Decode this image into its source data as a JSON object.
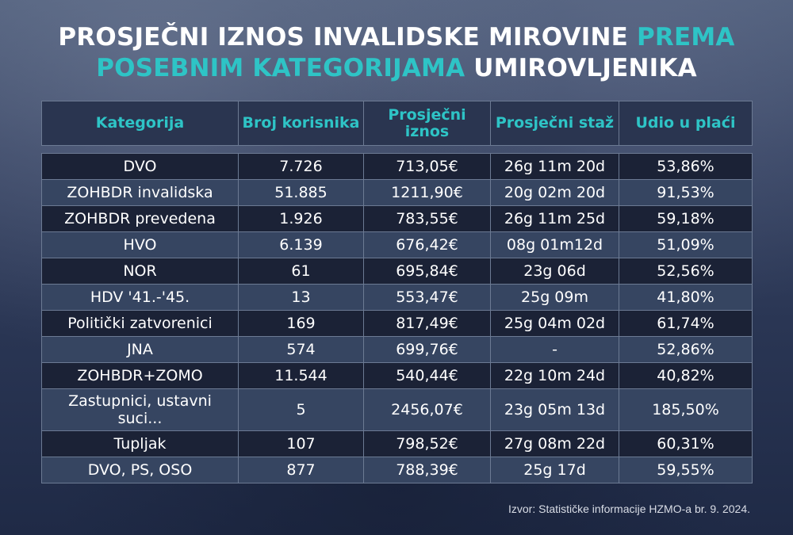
{
  "title": {
    "part1": "PROSJEČNI IZNOS INVALIDSKE MIROVINE",
    "part2": "PREMA POSEBNIM KATEGORIJAMA",
    "part3": "UMIROVLJENIKA"
  },
  "colors": {
    "accent": "#2ec4c6",
    "row_dark": "#1b2236",
    "row_light": "#364561",
    "header_bg": "#2a3550"
  },
  "table": {
    "headers": [
      "Kategorija",
      "Broj korisnika",
      "Prosječni iznos",
      "Prosječni staž",
      "Udio u plaći"
    ],
    "rows": [
      [
        "DVO",
        "7.726",
        "713,05€",
        "26g 11m 20d",
        "53,86%"
      ],
      [
        "ZOHBDR invalidska",
        "51.885",
        "1211,90€",
        "20g 02m 20d",
        "91,53%"
      ],
      [
        "ZOHBDR prevedena",
        "1.926",
        "783,55€",
        "26g 11m 25d",
        "59,18%"
      ],
      [
        "HVO",
        "6.139",
        "676,42€",
        "08g 01m12d",
        "51,09%"
      ],
      [
        "NOR",
        "61",
        "695,84€",
        "23g 06d",
        "52,56%"
      ],
      [
        "HDV '41.-'45.",
        "13",
        "553,47€",
        "25g 09m",
        "41,80%"
      ],
      [
        "Politički zatvorenici",
        "169",
        "817,49€",
        "25g 04m 02d",
        "61,74%"
      ],
      [
        "JNA",
        "574",
        "699,76€",
        "-",
        "52,86%"
      ],
      [
        "ZOHBDR+ZOMO",
        "11.544",
        "540,44€",
        "22g 10m 24d",
        "40,82%"
      ],
      [
        "Zastupnici, ustavni suci...",
        "5",
        "2456,07€",
        "23g 05m 13d",
        "185,50%"
      ],
      [
        "Tupljak",
        "107",
        "798,52€",
        "27g 08m 22d",
        "60,31%"
      ],
      [
        "DVO, PS, OSO",
        "877",
        "788,39€",
        "25g 17d",
        "59,55%"
      ]
    ]
  },
  "source": "Izvor: Statističke informacije HZMO-a br. 9. 2024."
}
